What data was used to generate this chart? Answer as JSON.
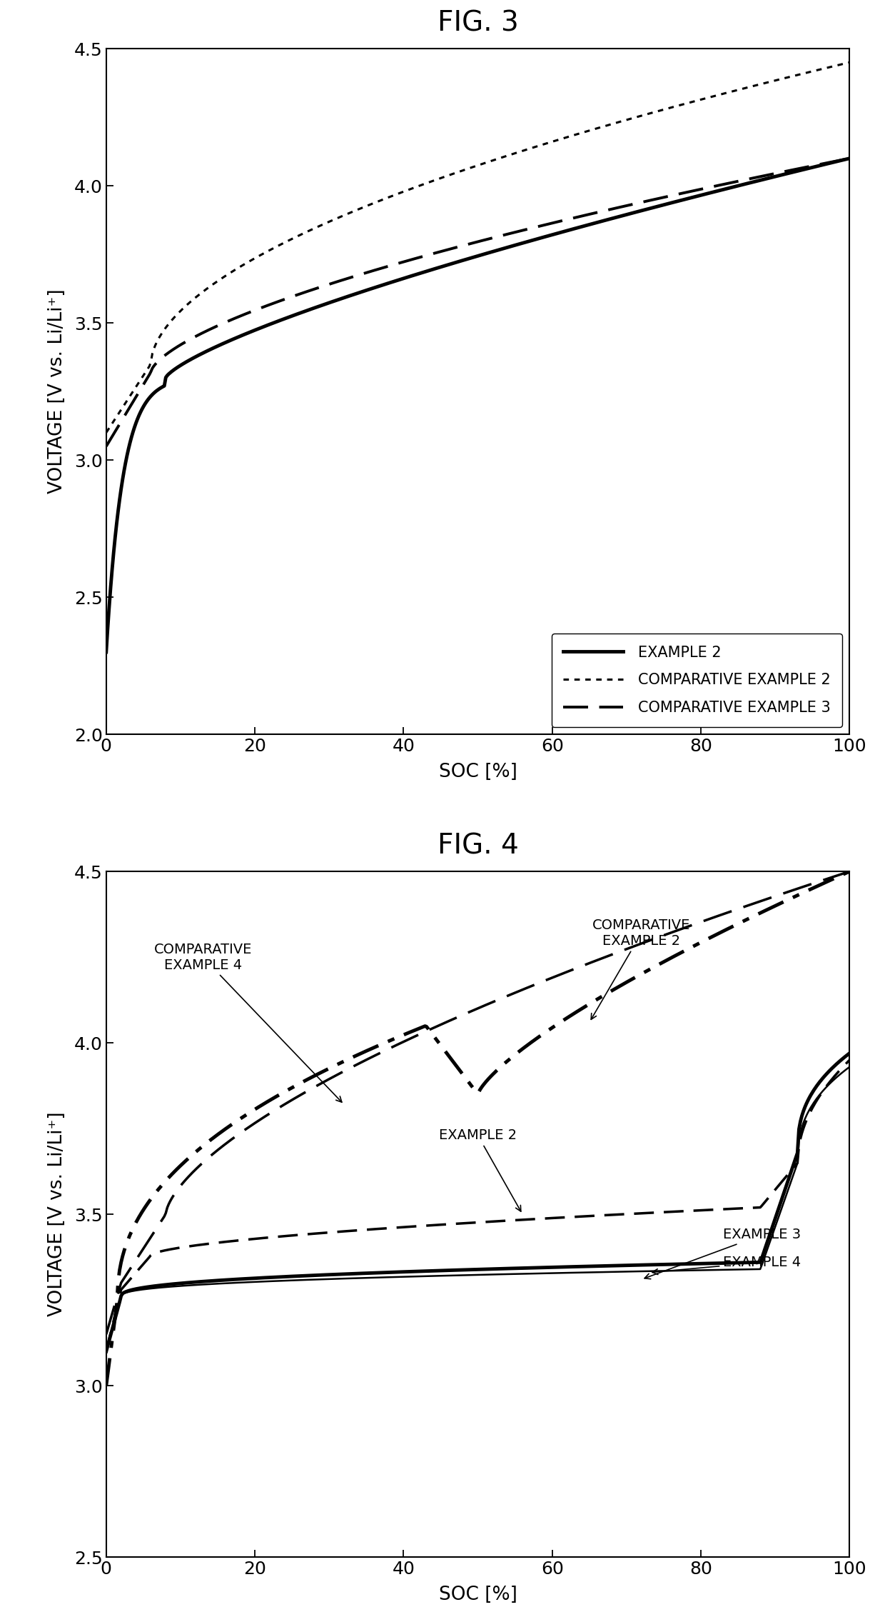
{
  "fig3_title": "FIG. 3",
  "fig4_title": "FIG. 4",
  "xlabel": "SOC [%]",
  "ylabel": "VOLTAGE [V vs. Li/Li⁺]",
  "fig3_ylim": [
    2.0,
    4.5
  ],
  "fig4_ylim": [
    2.5,
    4.5
  ],
  "fig3_yticks": [
    2.0,
    2.5,
    3.0,
    3.5,
    4.0,
    4.5
  ],
  "fig4_yticks": [
    2.5,
    3.0,
    3.5,
    4.0,
    4.5
  ],
  "xlim": [
    0,
    100
  ],
  "xticks": [
    0,
    20,
    40,
    60,
    80,
    100
  ],
  "background": "#ffffff",
  "line_color": "#000000",
  "fig3_legend_labels": [
    "EXAMPLE 2",
    "COMPARATIVE EXAMPLE 2",
    "COMPARATIVE EXAMPLE 3"
  ],
  "title_fontsize": 28,
  "axis_label_fontsize": 19,
  "tick_fontsize": 18,
  "legend_fontsize": 15,
  "annotation_fontsize": 14
}
